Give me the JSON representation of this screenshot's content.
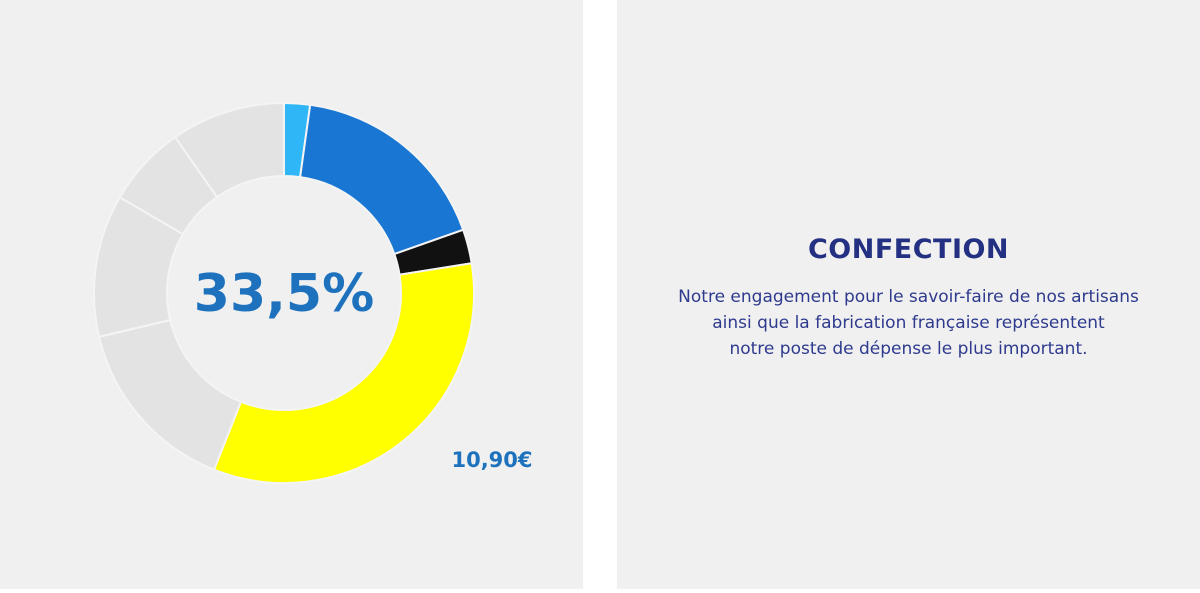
{
  "chart_data": {
    "type": "donut",
    "values": [
      2.2,
      17.4,
      2.9,
      33.5,
      15.3,
      12.1,
      6.9,
      9.7
    ],
    "value_labels": [
      null,
      null,
      null,
      "33,5%",
      null,
      null,
      null,
      null
    ],
    "colors": [
      "#2eb6f6",
      "#1976d3",
      "#111111",
      "#ffff00",
      "#e3e3e3",
      "#e3e3e3",
      "#e3e3e3",
      "#e3e3e3"
    ],
    "annotation": "10,90€"
  },
  "panel": {
    "title": "CONFECTION",
    "lines": [
      "Notre engagement pour le savoir-faire de nos artisans",
      "ainsi que la fabrication française représentent",
      "notre poste de dépense le plus important."
    ]
  }
}
